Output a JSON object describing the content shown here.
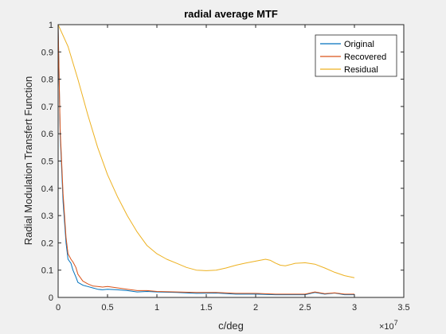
{
  "chart_data": {
    "type": "line",
    "title": "radial average MTF",
    "xlabel": "c/deg",
    "ylabel": "Radial Modulation Transfert Function",
    "x_exponent_label": "×10",
    "x_exponent": "7",
    "xlim": [
      0,
      3.5
    ],
    "ylim": [
      0,
      1
    ],
    "x_ticks": [
      0,
      0.5,
      1,
      1.5,
      2,
      2.5,
      3,
      3.5
    ],
    "x_tick_labels": [
      "0",
      "0.5",
      "1",
      "1.5",
      "2",
      "2.5",
      "3",
      "3.5"
    ],
    "y_ticks": [
      0,
      0.1,
      0.2,
      0.3,
      0.4,
      0.5,
      0.6,
      0.7,
      0.8,
      0.9,
      1
    ],
    "y_tick_labels": [
      "0",
      "0.1",
      "0.2",
      "0.3",
      "0.4",
      "0.5",
      "0.6",
      "0.7",
      "0.8",
      "0.9",
      "1"
    ],
    "grid": false,
    "legend_position": "top-right",
    "series": [
      {
        "name": "Original",
        "color": "#0072BD",
        "x": [
          0,
          0.02,
          0.05,
          0.08,
          0.1,
          0.13,
          0.15,
          0.18,
          0.2,
          0.25,
          0.3,
          0.35,
          0.4,
          0.45,
          0.5,
          0.6,
          0.7,
          0.8,
          0.9,
          1.0,
          1.2,
          1.4,
          1.6,
          1.8,
          2.0,
          2.2,
          2.4,
          2.5,
          2.6,
          2.7,
          2.8,
          2.9,
          3.0
        ],
        "y": [
          1.0,
          0.6,
          0.35,
          0.2,
          0.14,
          0.125,
          0.1,
          0.075,
          0.055,
          0.045,
          0.04,
          0.035,
          0.03,
          0.028,
          0.03,
          0.028,
          0.025,
          0.02,
          0.022,
          0.02,
          0.018,
          0.015,
          0.016,
          0.012,
          0.012,
          0.01,
          0.01,
          0.01,
          0.018,
          0.012,
          0.016,
          0.01,
          0.01
        ]
      },
      {
        "name": "Recovered",
        "color": "#D95319",
        "x": [
          0,
          0.02,
          0.05,
          0.08,
          0.1,
          0.13,
          0.15,
          0.18,
          0.2,
          0.25,
          0.3,
          0.35,
          0.4,
          0.45,
          0.5,
          0.6,
          0.7,
          0.8,
          0.9,
          1.0,
          1.2,
          1.4,
          1.6,
          1.8,
          2.0,
          2.2,
          2.4,
          2.5,
          2.6,
          2.7,
          2.8,
          2.9,
          3.0
        ],
        "y": [
          1.0,
          0.62,
          0.38,
          0.22,
          0.16,
          0.14,
          0.13,
          0.11,
          0.085,
          0.06,
          0.05,
          0.042,
          0.04,
          0.038,
          0.04,
          0.035,
          0.03,
          0.025,
          0.025,
          0.022,
          0.02,
          0.018,
          0.018,
          0.015,
          0.015,
          0.012,
          0.012,
          0.012,
          0.02,
          0.014,
          0.017,
          0.012,
          0.012
        ]
      },
      {
        "name": "Residual",
        "color": "#EDB120",
        "x": [
          0,
          0.1,
          0.2,
          0.3,
          0.4,
          0.5,
          0.6,
          0.7,
          0.8,
          0.9,
          1.0,
          1.1,
          1.2,
          1.3,
          1.4,
          1.5,
          1.6,
          1.7,
          1.8,
          1.9,
          2.0,
          2.1,
          2.15,
          2.2,
          2.25,
          2.3,
          2.35,
          2.4,
          2.5,
          2.6,
          2.7,
          2.8,
          2.9,
          3.0
        ],
        "y": [
          1.0,
          0.92,
          0.8,
          0.67,
          0.55,
          0.45,
          0.37,
          0.3,
          0.24,
          0.19,
          0.16,
          0.14,
          0.125,
          0.11,
          0.1,
          0.098,
          0.1,
          0.108,
          0.118,
          0.126,
          0.133,
          0.14,
          0.136,
          0.126,
          0.118,
          0.116,
          0.12,
          0.125,
          0.127,
          0.122,
          0.108,
          0.092,
          0.08,
          0.072
        ]
      }
    ]
  }
}
